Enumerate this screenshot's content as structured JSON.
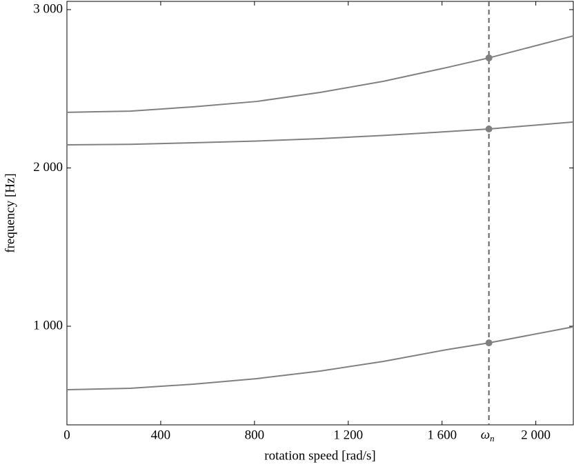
{
  "chart_data": {
    "type": "line",
    "xlabel": "rotation speed [rad/s]",
    "ylabel": "frequency [Hz]",
    "x": [
      0,
      270,
      540,
      810,
      1080,
      1350,
      1620,
      1800,
      2160
    ],
    "series": [
      {
        "color": "#808080",
        "values": [
          599,
          608,
          634,
          669,
          717,
          778,
          852,
          895,
          996
        ]
      },
      {
        "color": "#808080",
        "values": [
          2146,
          2149,
          2159,
          2170,
          2185,
          2205,
          2229,
          2246,
          2290
        ]
      },
      {
        "color": "#808080",
        "values": [
          2351,
          2359,
          2386,
          2420,
          2477,
          2547,
          2634,
          2695,
          2834
        ]
      }
    ],
    "vline": {
      "x": 1800,
      "label": "ω",
      "label_sub": "n",
      "color": "#606060"
    },
    "xlim": [
      0,
      2160
    ],
    "ylim": [
      377,
      3052
    ],
    "xticks": [
      0,
      400,
      800,
      {
        "value": 1200,
        "label": "1 200"
      },
      {
        "value": 1600,
        "label": "1 600"
      },
      {
        "value": 2000,
        "label": "2 000"
      }
    ],
    "yticks": [
      {
        "value": 1000,
        "label": "1 000"
      },
      {
        "value": 2000,
        "label": "2 000"
      },
      {
        "value": 3000,
        "label": "3 000"
      }
    ]
  }
}
